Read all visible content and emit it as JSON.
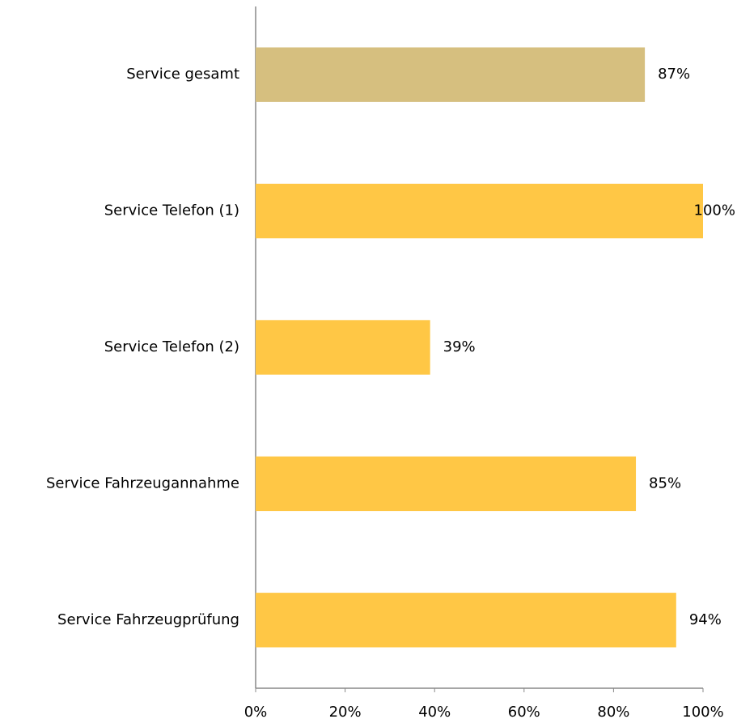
{
  "chart_data": {
    "type": "hbar",
    "categories": [
      "Service gesamt",
      "Service Telefon (1)",
      "Service Telefon (2)",
      "Service Fahrzeugannahme",
      "Service Fahrzeugprüfung"
    ],
    "values": [
      87,
      100,
      39,
      85,
      94
    ],
    "value_labels": [
      "87%",
      "100%",
      "39%",
      "85%",
      "94%"
    ],
    "colors": [
      "#d6bf7f",
      "#ffc745",
      "#ffc745",
      "#ffc745",
      "#ffc745"
    ],
    "xlim": [
      0,
      100
    ],
    "xticks": [
      {
        "value": 0,
        "label": "0%"
      },
      {
        "value": 20,
        "label": "20%"
      },
      {
        "value": 40,
        "label": "40%"
      },
      {
        "value": 60,
        "label": "60%"
      },
      {
        "value": 80,
        "label": "80%"
      },
      {
        "value": 100,
        "label": "100%"
      }
    ],
    "grid": false
  }
}
